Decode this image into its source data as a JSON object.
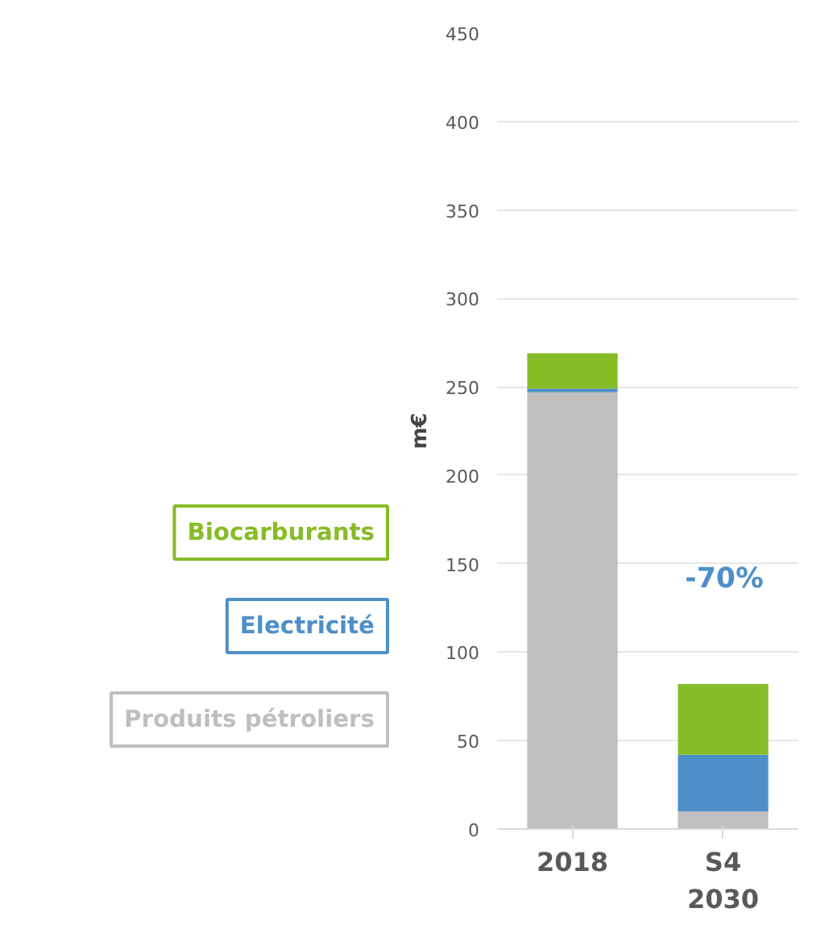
{
  "chart_data": {
    "type": "bar",
    "stacked": true,
    "categories": [
      "2018",
      "S4\n2030"
    ],
    "series": [
      {
        "name": "Produits pétroliers",
        "color": "#bfbfbf",
        "values": [
          247,
          10
        ]
      },
      {
        "name": "Electricité",
        "color": "#4e8fc8",
        "values": [
          2,
          32
        ]
      },
      {
        "name": "Biocarburants",
        "color": "#86bc25",
        "values": [
          20,
          40
        ]
      }
    ],
    "ylabel": "m€",
    "ylim": [
      0,
      450
    ],
    "yticks": [
      0,
      50,
      100,
      150,
      200,
      250,
      300,
      350,
      400,
      450
    ],
    "grid": "y",
    "legend": "left",
    "annotations": [
      "-70%"
    ]
  }
}
